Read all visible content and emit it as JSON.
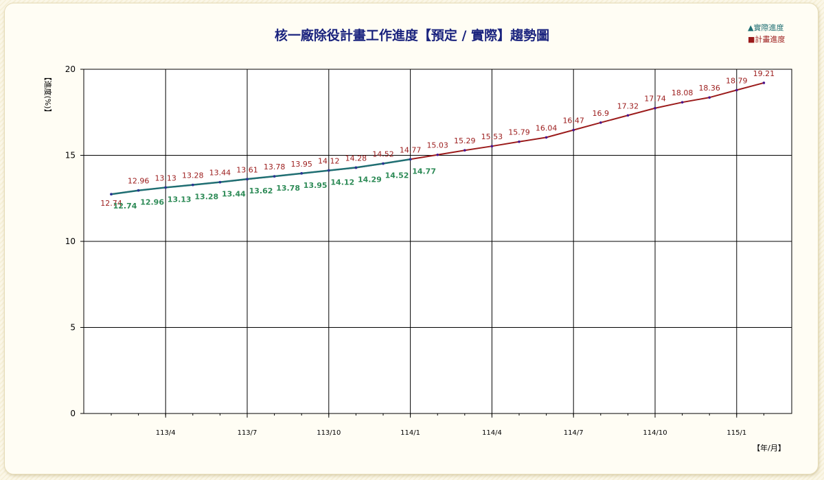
{
  "chart_data": {
    "type": "line",
    "title": "核一廠除役計畫工作進度【預定 / 實際】趨勢圖",
    "ylabel": "【進度(%)】",
    "xlabel": "【年/月】",
    "ylim": [
      0,
      20
    ],
    "yticks": [
      0,
      5,
      10,
      15,
      20
    ],
    "xticks": [
      {
        "label": "113/4",
        "index": 2
      },
      {
        "label": "113/7",
        "index": 5
      },
      {
        "label": "113/10",
        "index": 8
      },
      {
        "label": "114/1",
        "index": 11
      },
      {
        "label": "114/4",
        "index": 14
      },
      {
        "label": "114/7",
        "index": 17
      },
      {
        "label": "114/10",
        "index": 20
      },
      {
        "label": "115/1",
        "index": 23
      }
    ],
    "grid": true,
    "legend_position": "top-right",
    "series": [
      {
        "name": "實際進度",
        "legend_label": "▲實際進度",
        "color": "#1f6f73",
        "label_color": "#2e8b57",
        "values": [
          12.74,
          12.96,
          13.13,
          13.28,
          13.44,
          13.62,
          13.78,
          13.95,
          14.12,
          14.29,
          14.52,
          14.77
        ]
      },
      {
        "name": "計畫進度",
        "legend_label": "■計畫進度",
        "color": "#9b1b1b",
        "label_color": "#9b1b1b",
        "values": [
          12.74,
          12.96,
          13.13,
          13.28,
          13.44,
          13.61,
          13.78,
          13.95,
          14.12,
          14.28,
          14.52,
          14.77,
          15.03,
          15.29,
          15.53,
          15.79,
          16.04,
          16.47,
          16.9,
          17.32,
          17.74,
          18.08,
          18.36,
          18.79,
          19.21
        ]
      }
    ]
  }
}
